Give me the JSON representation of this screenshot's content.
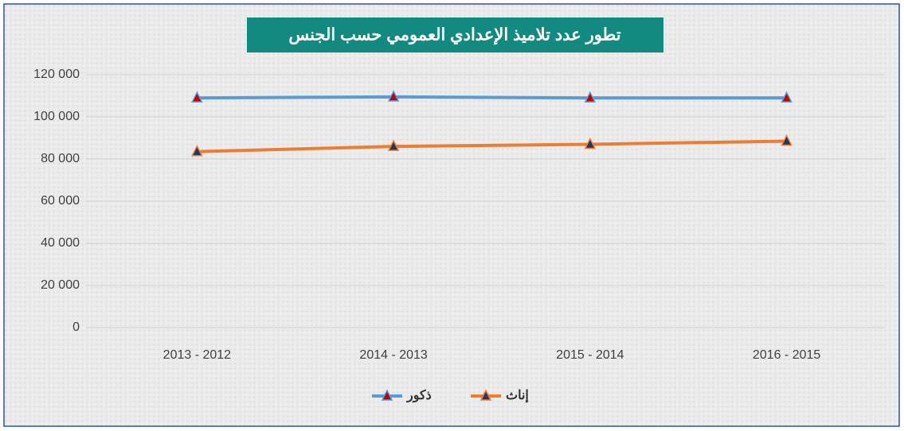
{
  "chart_data": {
    "type": "line",
    "title": "تطور عدد تلاميذ الإعدادي العمومي حسب الجنس",
    "categories": [
      "2013 - 2012",
      "2014 - 2013",
      "2015 - 2014",
      "2016 - 2015"
    ],
    "series": [
      {
        "name": "ذكور",
        "color": "#5b9bd5",
        "marker_color": "#c00000",
        "values": [
          109000,
          109500,
          109000,
          109000
        ]
      },
      {
        "name": "إناث",
        "color": "#ed7d31",
        "marker_color": "#1f3864",
        "values": [
          83500,
          86000,
          87000,
          88500
        ]
      }
    ],
    "ylim": [
      0,
      120000
    ],
    "yticks": [
      0,
      {
        "value": 20000,
        "label": "20 000"
      },
      {
        "value": 40000,
        "label": "40 000"
      },
      {
        "value": 60000,
        "label": "60 000"
      },
      {
        "value": 80000,
        "label": "80 000"
      },
      {
        "value": 100000,
        "label": "100 000"
      },
      {
        "value": 120000,
        "label": "120 000"
      }
    ],
    "grid": true,
    "legend": "bottom"
  }
}
